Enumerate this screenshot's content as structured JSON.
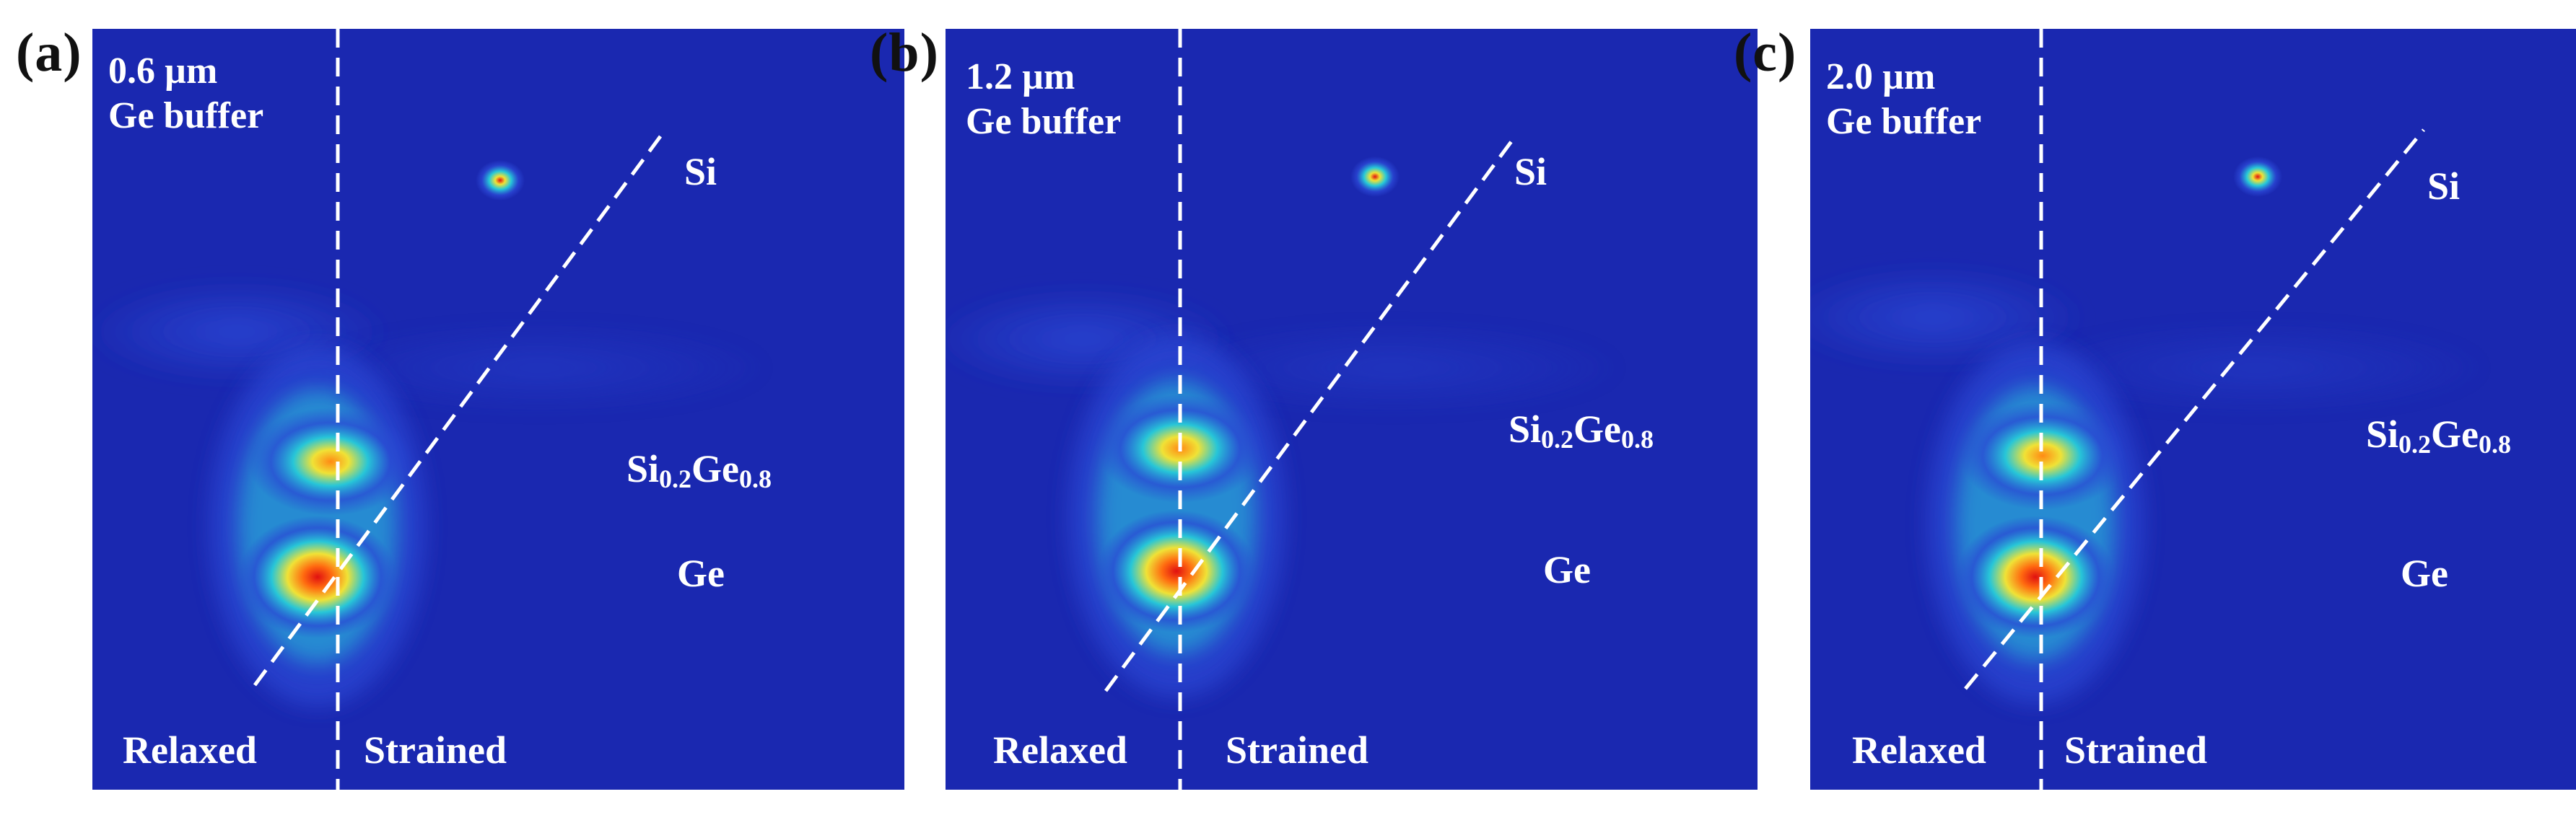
{
  "figure": {
    "colors": {
      "background": "#1a28b0",
      "lowest": "#0b1890",
      "low": "#2a46d4",
      "mid": "#27c9d8",
      "high": "#f0e236",
      "peak": "#e01010",
      "guide_line": "#ffffff"
    },
    "panels": [
      {
        "letter": "(a)",
        "thickness": "0.6 µm",
        "buffer": "Ge buffer",
        "si_label": "Si",
        "alloy_base": "Si",
        "alloy_si_sub": "0.2",
        "alloy_ge": "Ge",
        "alloy_ge_sub": "0.8",
        "ge_label": "Ge",
        "relaxed_label": "Relaxed",
        "strained_label": "Strained"
      },
      {
        "letter": "(b)",
        "thickness": "1.2 µm",
        "buffer": "Ge buffer",
        "si_label": "Si",
        "alloy_base": "Si",
        "alloy_si_sub": "0.2",
        "alloy_ge": "Ge",
        "alloy_ge_sub": "0.8",
        "ge_label": "Ge",
        "relaxed_label": "Relaxed",
        "strained_label": "Strained"
      },
      {
        "letter": "(c)",
        "thickness": "2.0 µm",
        "buffer": "Ge buffer",
        "si_label": "Si",
        "alloy_base": "Si",
        "alloy_si_sub": "0.2",
        "alloy_ge": "Ge",
        "alloy_ge_sub": "0.8",
        "ge_label": "Ge",
        "relaxed_label": "Relaxed",
        "strained_label": "Strained"
      }
    ]
  }
}
